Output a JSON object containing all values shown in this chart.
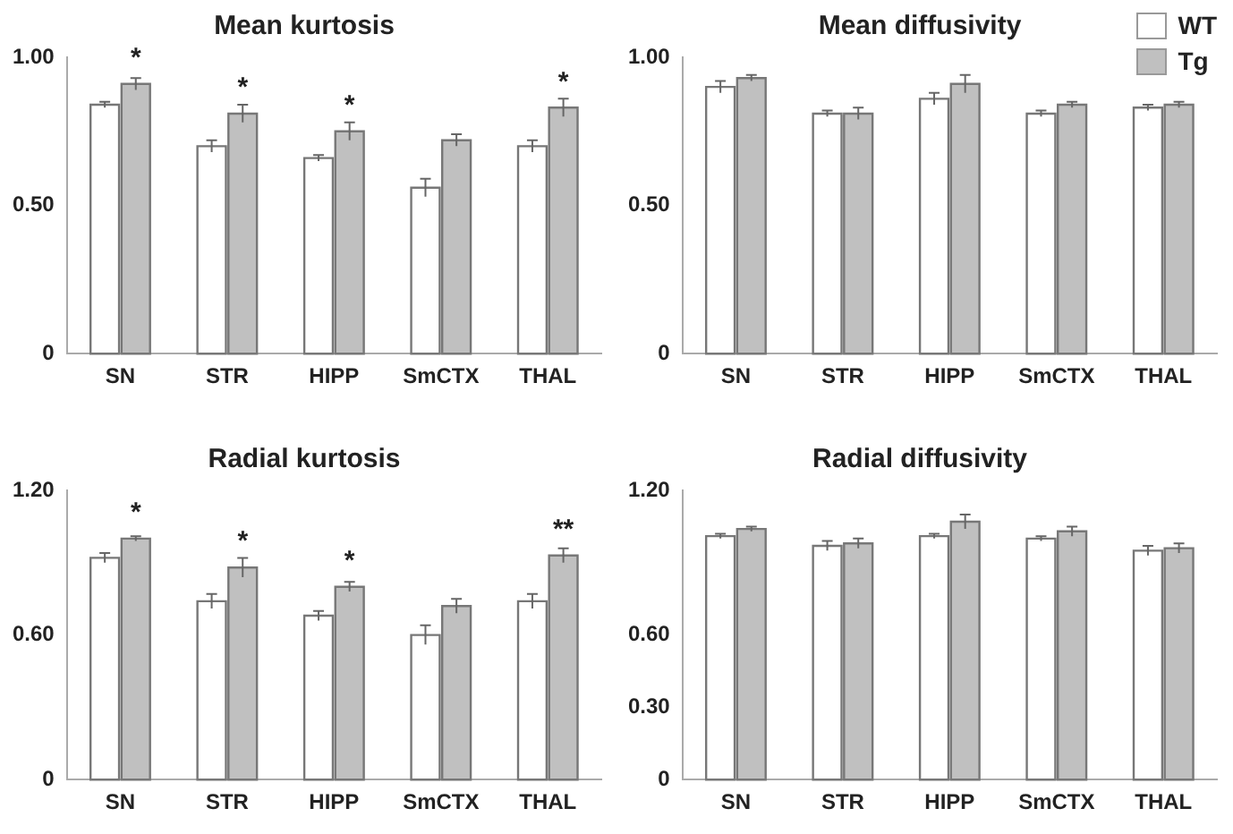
{
  "chart_data": [
    {
      "type": "bar",
      "title": "Mean kurtosis",
      "categories": [
        "SN",
        "STR",
        "HIPP",
        "SmCTX",
        "THAL"
      ],
      "ylim": [
        0,
        1
      ],
      "yticks": [
        {
          "value": 0,
          "label": "0"
        },
        {
          "value": 0.5,
          "label": "0.50"
        },
        {
          "value": 1,
          "label": "1.00"
        }
      ],
      "grid": false,
      "legend": false,
      "series": [
        {
          "color": "#ffffff",
          "values": [
            0.84,
            0.7,
            0.66,
            0.56,
            0.7
          ],
          "errors": [
            0.01,
            0.02,
            0.01,
            0.03,
            0.02
          ]
        },
        {
          "color": "#c0c0c0",
          "values": [
            0.91,
            0.81,
            0.75,
            0.72,
            0.83
          ],
          "errors": [
            0.02,
            0.03,
            0.03,
            0.02,
            0.03
          ]
        }
      ],
      "annotations": [
        {
          "text": "*",
          "x": "SN",
          "y": 0.91
        },
        {
          "text": "*",
          "x": "STR",
          "y": 0.81
        },
        {
          "text": "*",
          "x": "HIPP",
          "y": 0.75
        },
        {
          "text": "*",
          "x": "THAL",
          "y": 0.83
        }
      ]
    },
    {
      "type": "bar",
      "title": "Mean diffusivity",
      "categories": [
        "SN",
        "STR",
        "HIPP",
        "SmCTX",
        "THAL"
      ],
      "ylim": [
        0,
        1
      ],
      "yticks": [
        {
          "value": 0,
          "label": "0"
        },
        {
          "value": 0.5,
          "label": "0.50"
        },
        {
          "value": 1,
          "label": "1.00"
        }
      ],
      "grid": false,
      "legend": "top right",
      "series": [
        {
          "name": "WT",
          "color": "#ffffff",
          "values": [
            0.9,
            0.81,
            0.86,
            0.81,
            0.83
          ],
          "errors": [
            0.02,
            0.01,
            0.02,
            0.01,
            0.01
          ]
        },
        {
          "name": "Tg",
          "color": "#c0c0c0",
          "values": [
            0.93,
            0.81,
            0.91,
            0.84,
            0.84
          ],
          "errors": [
            0.01,
            0.02,
            0.03,
            0.01,
            0.01
          ]
        }
      ]
    },
    {
      "type": "bar",
      "title": "Radial kurtosis",
      "categories": [
        "SN",
        "STR",
        "HIPP",
        "SmCTX",
        "THAL"
      ],
      "ylim": [
        0,
        1.2
      ],
      "yticks": [
        {
          "value": 0,
          "label": "0"
        },
        {
          "value": 0.6,
          "label": "0.60"
        },
        {
          "value": 1.2,
          "label": "1.20"
        }
      ],
      "grid": false,
      "legend": false,
      "series": [
        {
          "color": "#ffffff",
          "values": [
            0.92,
            0.74,
            0.68,
            0.6,
            0.74
          ],
          "errors": [
            0.02,
            0.03,
            0.02,
            0.04,
            0.03
          ]
        },
        {
          "color": "#c0c0c0",
          "values": [
            1.0,
            0.88,
            0.8,
            0.72,
            0.93
          ],
          "errors": [
            0.01,
            0.04,
            0.02,
            0.03,
            0.03
          ]
        }
      ],
      "annotations": [
        {
          "text": "*",
          "x": "SN",
          "y": 1.0
        },
        {
          "text": "*",
          "x": "STR",
          "y": 0.88
        },
        {
          "text": "*",
          "x": "HIPP",
          "y": 0.8
        },
        {
          "text": "**",
          "x": "THAL",
          "y": 0.93
        }
      ]
    },
    {
      "type": "bar",
      "title": "Radial diffusivity",
      "categories": [
        "SN",
        "STR",
        "HIPP",
        "SmCTX",
        "THAL"
      ],
      "ylim": [
        0,
        1.2
      ],
      "yticks": [
        {
          "value": 0,
          "label": "0"
        },
        {
          "value": 0.3,
          "label": "0.30"
        },
        {
          "value": 0.6,
          "label": "0.60"
        },
        {
          "value": 1.2,
          "label": "1.20"
        }
      ],
      "grid": false,
      "legend": false,
      "series": [
        {
          "color": "#ffffff",
          "values": [
            1.01,
            0.97,
            1.01,
            1.0,
            0.95
          ],
          "errors": [
            0.01,
            0.02,
            0.01,
            0.01,
            0.02
          ]
        },
        {
          "color": "#c0c0c0",
          "values": [
            1.04,
            0.98,
            1.07,
            1.03,
            0.96
          ],
          "errors": [
            0.01,
            0.02,
            0.03,
            0.02,
            0.02
          ]
        }
      ]
    }
  ]
}
